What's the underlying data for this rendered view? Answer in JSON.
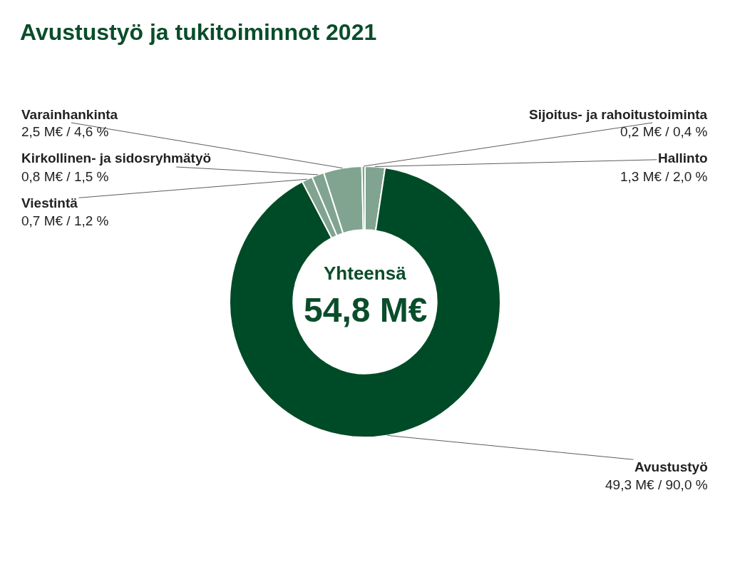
{
  "chart_data": {
    "type": "donut",
    "title": "Avustustyö ja tukitoiminnot 2021",
    "categories": [
      "Hallinto",
      "Avustustyö",
      "Viestintä",
      "Kirkollinen- ja sidosryhmätyö",
      "Varainhankinta",
      "Sijoitus- ja rahoitustoiminta"
    ],
    "values": [
      1.3,
      49.3,
      0.7,
      0.8,
      2.5,
      0.2
    ],
    "value_labels": [
      "1,3 M€ / 2,0 %",
      "49,3 M€ / 90,0 %",
      "0,7 M€ / 1,2 %",
      "0,8 M€ / 1,5 %",
      "2,5 M€ / 4,6 %",
      "0,2 M€ / 0,4 %"
    ],
    "colors": [
      "#80a48f",
      "#004b27",
      "#80a48f",
      "#80a48f",
      "#80a48f",
      "#80a48f"
    ],
    "annotations": [
      "Yhteensä",
      "54,8 M€"
    ],
    "legend": false
  }
}
